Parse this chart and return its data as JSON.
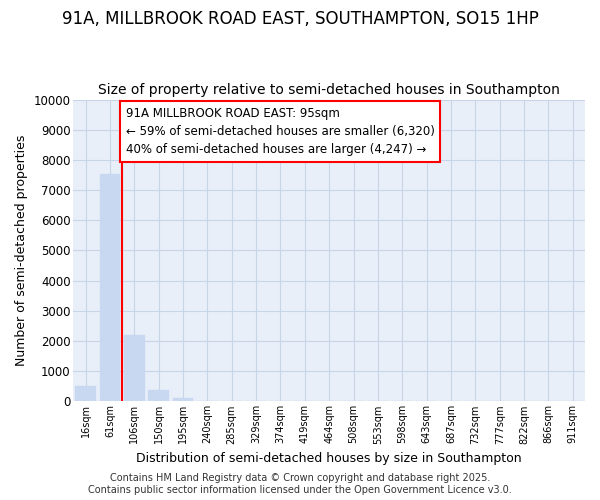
{
  "title": "91A, MILLBROOK ROAD EAST, SOUTHAMPTON, SO15 1HP",
  "subtitle": "Size of property relative to semi-detached houses in Southampton",
  "xlabel": "Distribution of semi-detached houses by size in Southampton",
  "ylabel": "Number of semi-detached properties",
  "categories": [
    "16sqm",
    "61sqm",
    "106sqm",
    "150sqm",
    "195sqm",
    "240sqm",
    "285sqm",
    "329sqm",
    "374sqm",
    "419sqm",
    "464sqm",
    "508sqm",
    "553sqm",
    "598sqm",
    "643sqm",
    "687sqm",
    "732sqm",
    "777sqm",
    "822sqm",
    "866sqm",
    "911sqm"
  ],
  "values": [
    500,
    7550,
    2200,
    380,
    100,
    0,
    0,
    0,
    0,
    0,
    0,
    0,
    0,
    0,
    0,
    0,
    0,
    0,
    0,
    0,
    0
  ],
  "bar_color": "#c8d8f0",
  "bar_edgecolor": "#c8d8f0",
  "property_line_x": 1.5,
  "annotation_line1": "91A MILLBROOK ROAD EAST: 95sqm",
  "annotation_line2": "← 59% of semi-detached houses are smaller (6,320)",
  "annotation_line3": "40% of semi-detached houses are larger (4,247) →",
  "ylim": [
    0,
    10000
  ],
  "yticks": [
    0,
    1000,
    2000,
    3000,
    4000,
    5000,
    6000,
    7000,
    8000,
    9000,
    10000
  ],
  "grid_color": "#c8d4e8",
  "background_color": "#e8eff8",
  "footer": "Contains HM Land Registry data © Crown copyright and database right 2025.\nContains public sector information licensed under the Open Government Licence v3.0.",
  "title_fontsize": 12,
  "subtitle_fontsize": 10,
  "annot_fontsize": 8.5,
  "footer_fontsize": 7,
  "ylabel_fontsize": 9,
  "xlabel_fontsize": 9
}
